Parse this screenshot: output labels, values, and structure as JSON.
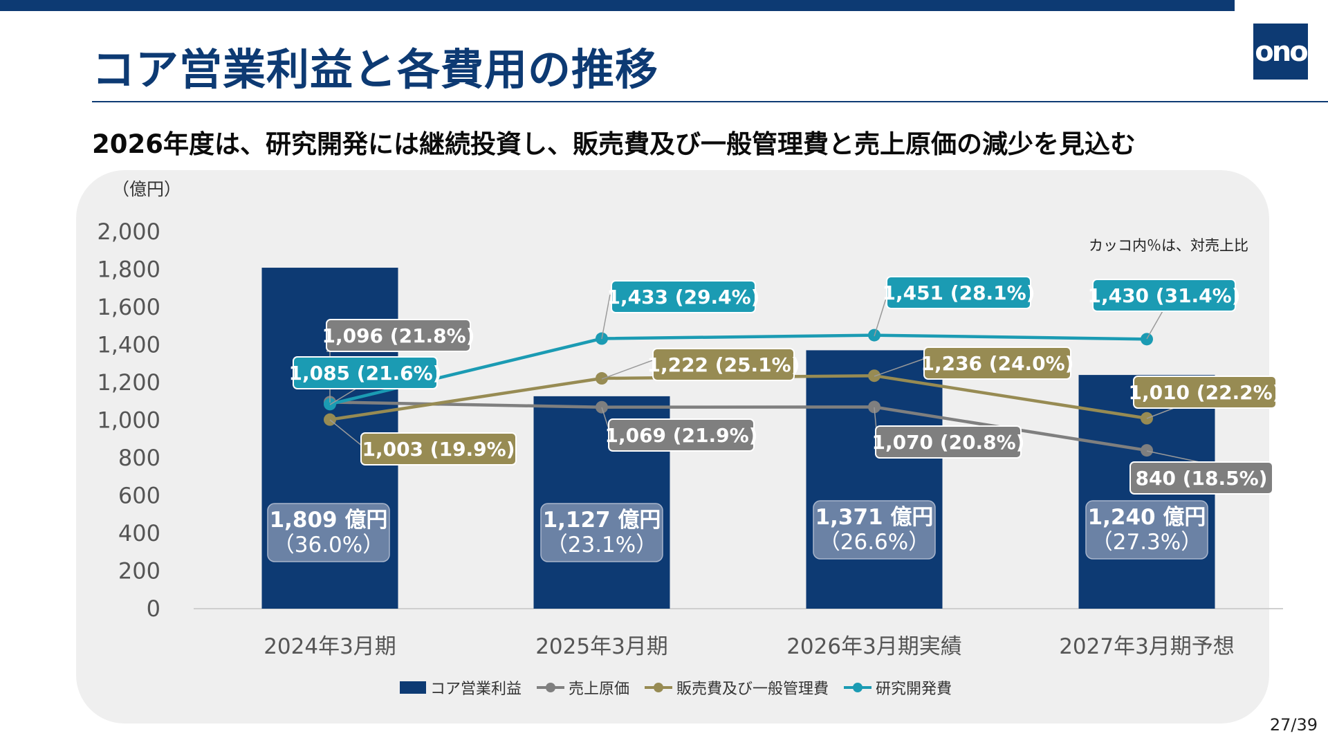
{
  "slide": {
    "title": "コア営業利益と各費用の推移",
    "subtitle": "2026年度は、研究開発には継続投資し、販売費及び一般管理費と売上原価の減少を見込む",
    "logo_text": "ono",
    "page_number": "27/39",
    "note": "カッコ内％は、対売上比",
    "unit_label": "（億円）"
  },
  "chart_data": {
    "type": "bar",
    "categories": [
      "2024年3月期",
      "2025年3月期",
      "2026年3月期実績",
      "2027年3月期予想"
    ],
    "ylim": [
      0,
      2000
    ],
    "yticks": [
      "2,000",
      "1,800",
      "1,600",
      "1,400",
      "1,200",
      "1,000",
      "800",
      "600",
      "400",
      "200",
      "0"
    ],
    "ytick_values": [
      2000,
      1800,
      1600,
      1400,
      1200,
      1000,
      800,
      600,
      400,
      200,
      0
    ],
    "bars": {
      "name": "コア営業利益",
      "values": [
        1809,
        1127,
        1371,
        1240
      ],
      "labels_line1": [
        "1,809 億円",
        "1,127 億円",
        "1,371 億円",
        "1,240 億円"
      ],
      "labels_line2": [
        "（36.0%）",
        "（23.1%）",
        "（26.6%）",
        "（27.3%）"
      ],
      "color": "#0d3a73"
    },
    "series": [
      {
        "name": "売上原価",
        "color": "#7f7f7f",
        "values": [
          1096,
          1069,
          1070,
          840
        ],
        "labels": [
          "1,096 (21.8%)",
          "1,069 (21.9%)",
          "1,070 (20.8%)",
          "840 (18.5%)"
        ]
      },
      {
        "name": "販売費及び一般管理費",
        "color": "#978b53",
        "values": [
          1003,
          1222,
          1236,
          1010
        ],
        "labels": [
          "1,003 (19.9%)",
          "1,222 (25.1%)",
          "1,236 (24.0%)",
          "1,010 (22.2%)"
        ]
      },
      {
        "name": "研究開発費",
        "color": "#1b9bb3",
        "values": [
          1085,
          1433,
          1451,
          1430
        ],
        "labels": [
          "1,085 (21.6%)",
          "1,433 (29.4%)",
          "1,451 (28.1%)",
          "1,430 (31.4%)"
        ]
      }
    ],
    "legend_position": "bottom",
    "grid": false
  }
}
